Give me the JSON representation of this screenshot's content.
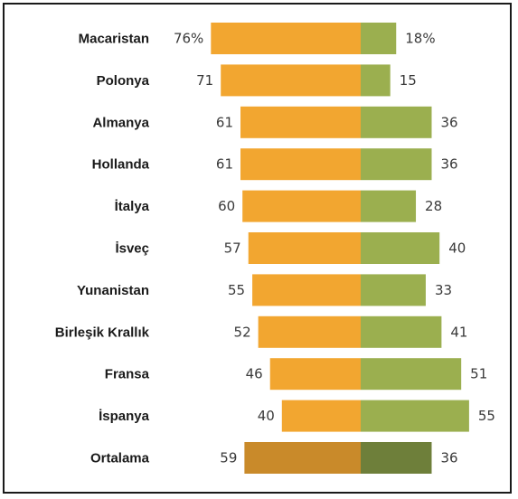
{
  "chart_data": {
    "type": "bar",
    "orientation": "horizontal-diverging",
    "categories": [
      "Macaristan",
      "Polonya",
      "Almanya",
      "Hollanda",
      "İtalya",
      "İsveç",
      "Yunanistan",
      "Birleşik Krallık",
      "Fransa",
      "İspanya",
      "Ortalama"
    ],
    "series": [
      {
        "values": [
          76,
          71,
          61,
          61,
          60,
          57,
          55,
          52,
          46,
          40,
          59
        ],
        "labels": [
          "76%",
          "71",
          "61",
          "61",
          "60",
          "57",
          "55",
          "52",
          "46",
          "40",
          "59"
        ],
        "color": "#F2A630",
        "highlight_color": "#C98A2A"
      },
      {
        "values": [
          18,
          15,
          36,
          36,
          28,
          40,
          33,
          41,
          51,
          55,
          36
        ],
        "labels": [
          "18%",
          "15",
          "36",
          "36",
          "28",
          "40",
          "33",
          "41",
          "51",
          "55",
          "36"
        ],
        "color": "#9BAF4F",
        "highlight_color": "#6E7F3A"
      }
    ],
    "highlight_category": "Ortalama",
    "title": "",
    "xlabel": "",
    "ylabel": "",
    "grid": false,
    "legend": "none"
  }
}
